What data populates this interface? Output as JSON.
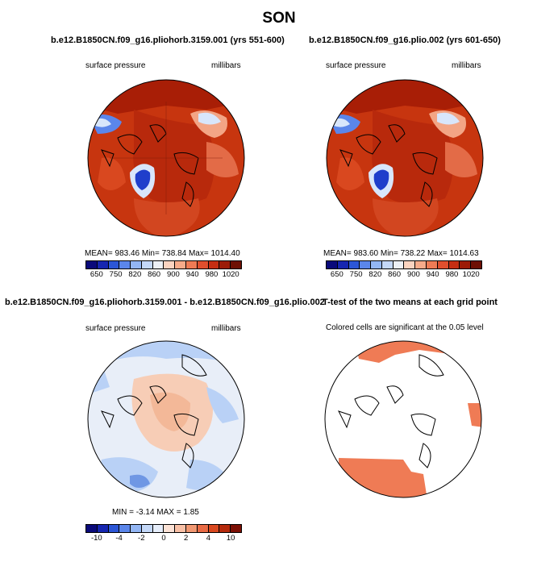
{
  "figure": {
    "title": "SON"
  },
  "panels": {
    "top_left": {
      "title": "b.e12.B1850CN.f09_g16.pliohorb.3159.001 (yrs 551-600)",
      "variable": "surface pressure",
      "units": "millibars",
      "stats": "MEAN= 983.46   Min= 738.84   Max= 1014.40"
    },
    "top_right": {
      "title": "b.e12.B1850CN.f09_g16.plio.002 (yrs 601-650)",
      "variable": "surface pressure",
      "units": "millibars",
      "stats": "MEAN= 983.60   Min= 738.22   Max= 1014.63"
    },
    "bottom_left": {
      "title": "b.e12.B1850CN.f09_g16.pliohorb.3159.001 - b.e12.B1850CN.f09_g16.plio.002",
      "variable": "surface pressure",
      "units": "millibars",
      "stats": "MIN =   -3.14  MAX =     1.85"
    },
    "bottom_right": {
      "title": "T-test of the two means at each grid point",
      "note": "Colored cells are significant at the 0.05 level"
    }
  },
  "colorbars": {
    "absolute": {
      "labels": [
        "650",
        "750",
        "820",
        "860",
        "900",
        "940",
        "980",
        "1020"
      ],
      "colors": [
        "#0a0a7a",
        "#1626b0",
        "#2c56d6",
        "#5b86ea",
        "#93b6f4",
        "#c4d8f8",
        "#ecf0f6",
        "#fbd3c0",
        "#f7ab8a",
        "#ef7b55",
        "#df4f2e",
        "#c52e13",
        "#9c1b08",
        "#6e1004"
      ]
    },
    "difference": {
      "labels": [
        "-10",
        "-4",
        "-2",
        "0",
        "2",
        "4",
        "10"
      ],
      "colors": [
        "#0a0a7a",
        "#1626b0",
        "#2c56d6",
        "#5b86ea",
        "#93b6f4",
        "#c4d8f8",
        "#e6eefb",
        "#fbe2d6",
        "#f8c0a6",
        "#f19872",
        "#e96b45",
        "#d9481f",
        "#b52a0c",
        "#7c1005"
      ]
    }
  },
  "map_colors": {
    "ocean_high": "#c7350f",
    "land_high": "#a81e06",
    "mid_land": "#e36b47",
    "low_land": "#f3a585",
    "very_low": "#1f3ecb",
    "ice_light": "#d8e6fb",
    "diff_pos": "#f7cdb6",
    "diff_neg": "#b9d1f6",
    "diff_neg_deep": "#6f97e4",
    "diff_neutral": "#e8eef8",
    "significant": "#ef7b55"
  }
}
